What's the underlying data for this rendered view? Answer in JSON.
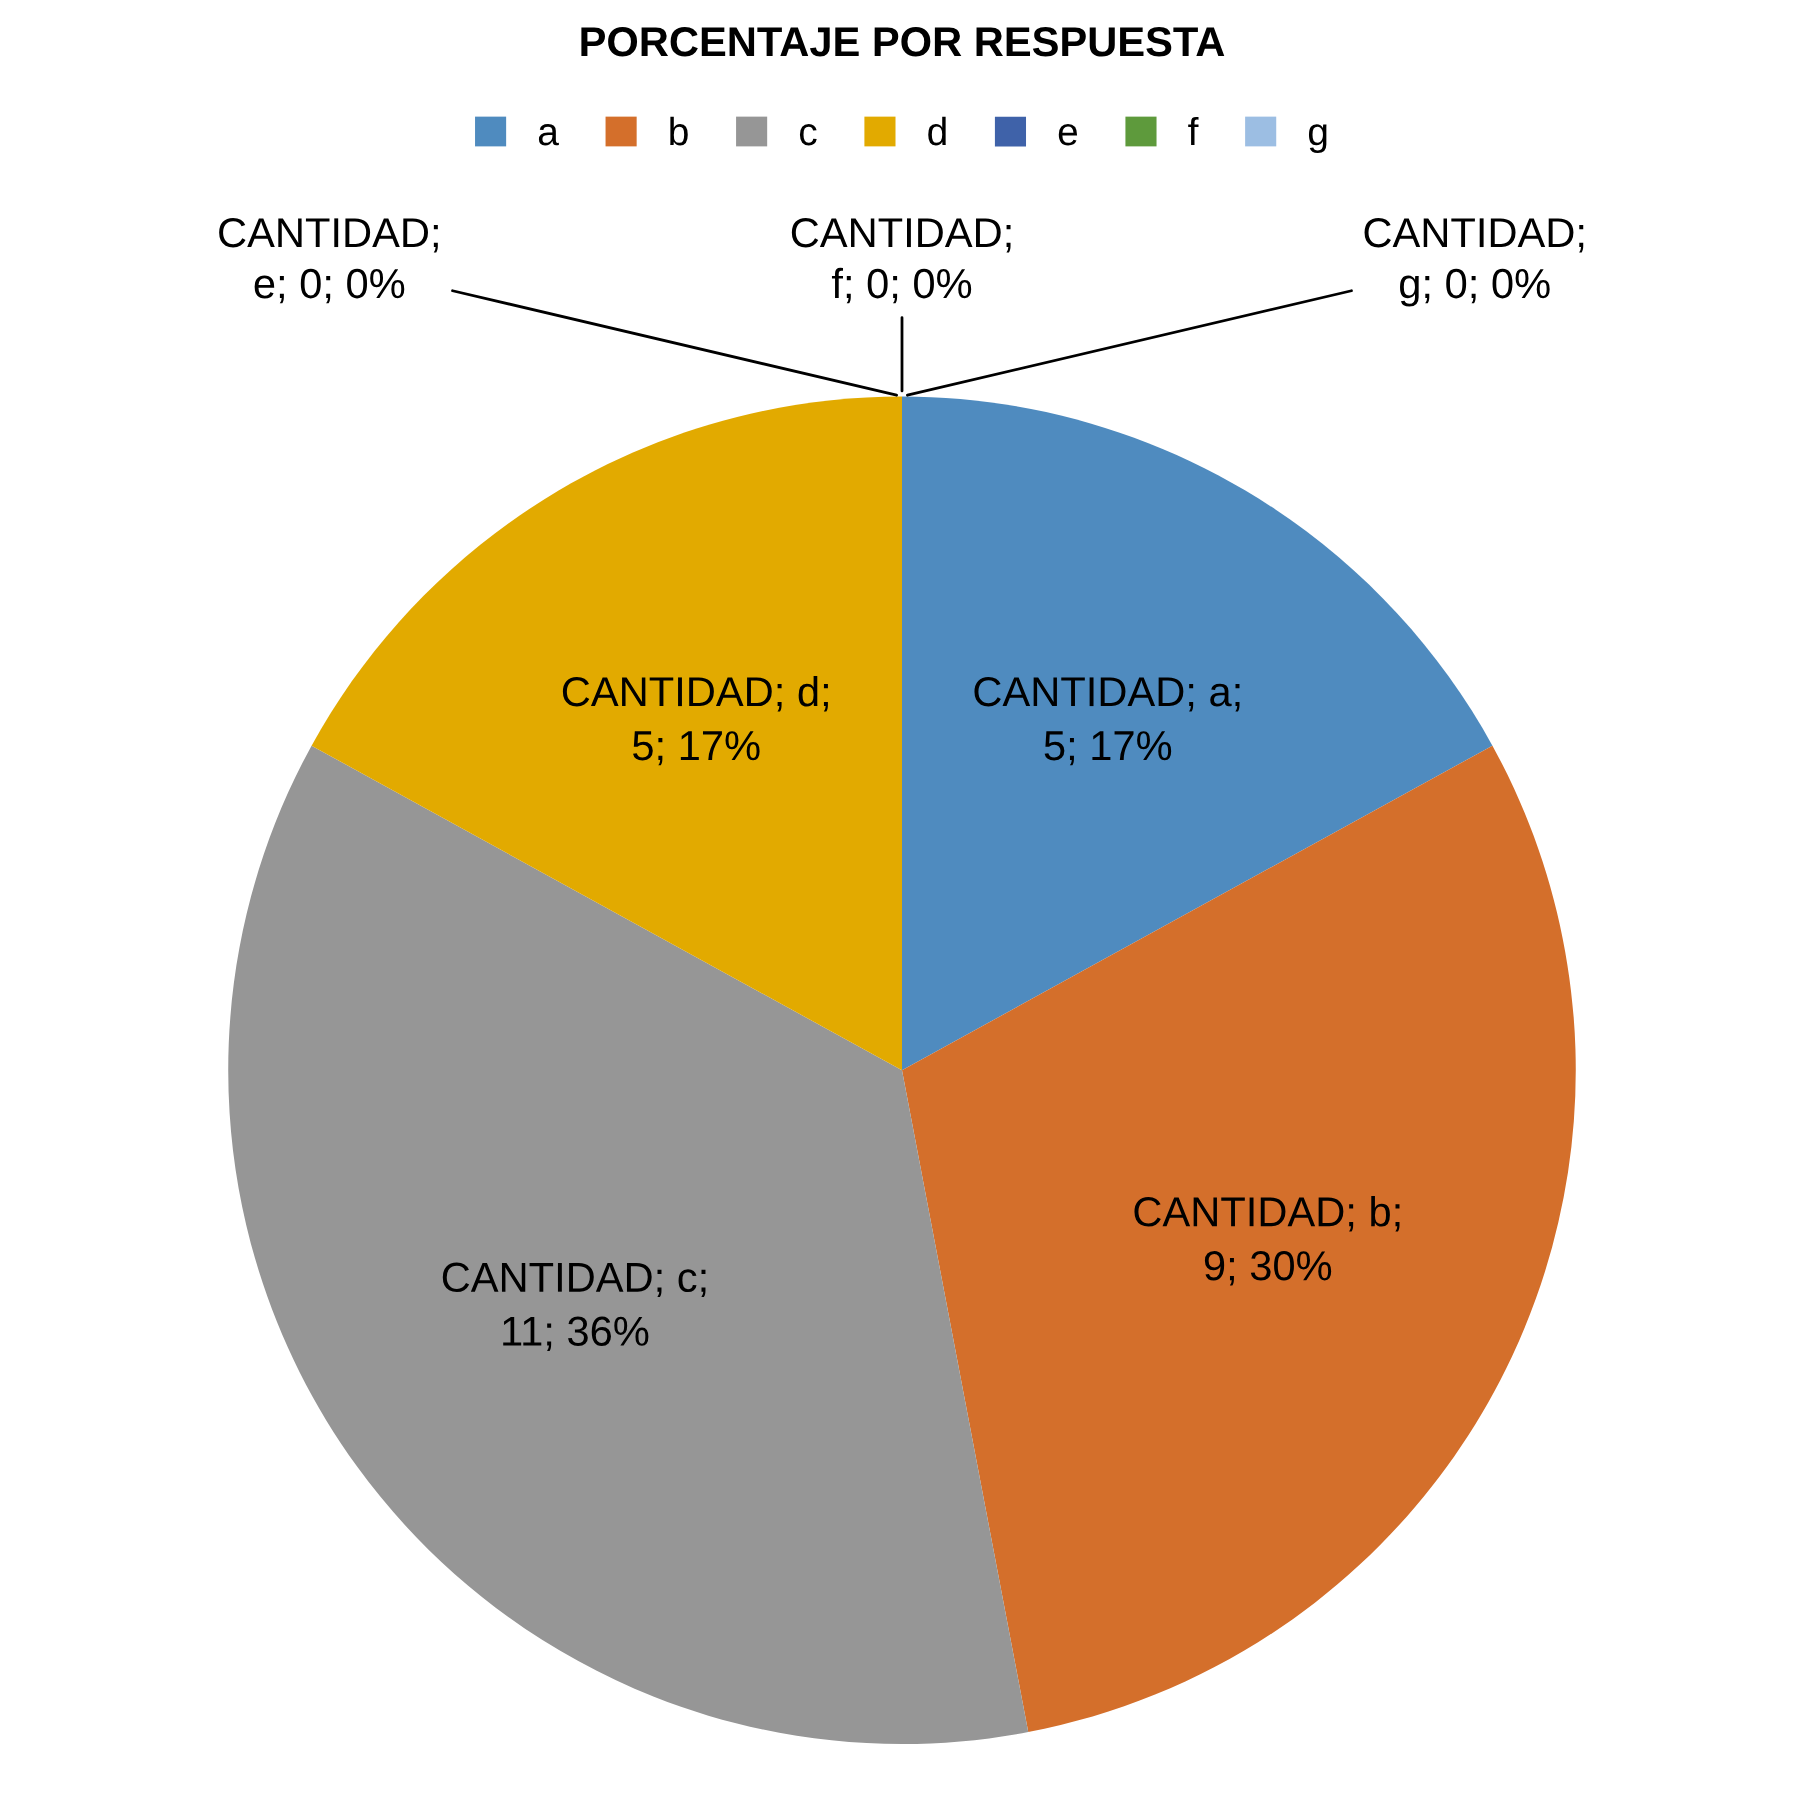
{
  "chart_data": {
    "type": "pie",
    "title": "PORCENTAJE POR RESPUESTA",
    "categories": [
      "a",
      "b",
      "c",
      "d",
      "e",
      "f",
      "g"
    ],
    "series": [
      {
        "values": [
          17,
          30,
          36,
          17,
          0,
          0,
          0
        ]
      }
    ],
    "colors": [
      "#4f8bbf",
      "#d46f2b",
      "#969696",
      "#e2aa00",
      "#3f62a9",
      "#5e9a3c",
      "#9cbee3"
    ],
    "value_labels": [
      "CANTIDAD; a;\n5; 17%",
      "CANTIDAD; b;\n9; 30%",
      "CANTIDAD; c;\n11; 36%",
      "CANTIDAD; d;\n5; 17%",
      "CANTIDAD;\ne; 0; 0%",
      "CANTIDAD;\nf; 0; 0%",
      "CANTIDAD;\ng; 0; 0%"
    ],
    "legend": "top"
  }
}
